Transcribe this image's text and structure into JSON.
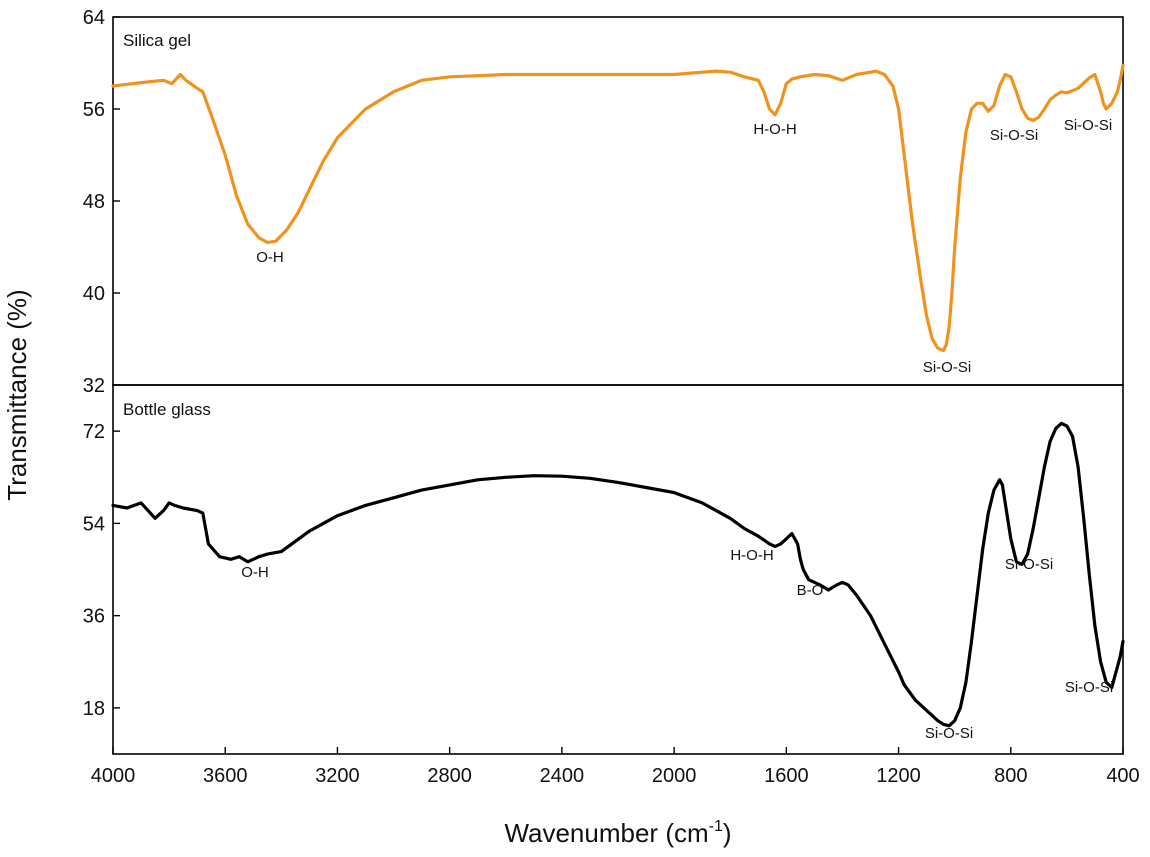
{
  "chart_data": [
    {
      "type": "line",
      "panel": "top",
      "title": "Silica gel",
      "color": "#f0921e",
      "xlim": [
        4000,
        400
      ],
      "ylim": [
        32,
        64
      ],
      "yticks": [
        32,
        40,
        48,
        56,
        64
      ],
      "xticks": [
        4000,
        3600,
        3200,
        2800,
        2400,
        2000,
        1600,
        1200,
        800,
        400
      ],
      "series": [
        {
          "name": "Silica gel",
          "x": [
            4000,
            3900,
            3820,
            3790,
            3760,
            3740,
            3700,
            3680,
            3650,
            3600,
            3560,
            3520,
            3480,
            3450,
            3420,
            3380,
            3340,
            3300,
            3250,
            3200,
            3100,
            3000,
            2950,
            2900,
            2800,
            2700,
            2600,
            2500,
            2400,
            2300,
            2200,
            2100,
            2000,
            1900,
            1850,
            1800,
            1750,
            1700,
            1680,
            1660,
            1640,
            1620,
            1600,
            1580,
            1550,
            1500,
            1450,
            1400,
            1350,
            1300,
            1280,
            1250,
            1220,
            1200,
            1180,
            1150,
            1120,
            1100,
            1080,
            1060,
            1040,
            1030,
            1020,
            1010,
            1000,
            980,
            960,
            940,
            920,
            900,
            880,
            860,
            840,
            820,
            800,
            780,
            760,
            740,
            720,
            700,
            680,
            660,
            640,
            620,
            600,
            560,
            520,
            500,
            480,
            470,
            460,
            440,
            420,
            410,
            400
          ],
          "y": [
            58.0,
            58.3,
            58.5,
            58.2,
            59.0,
            58.5,
            57.8,
            57.5,
            55.5,
            52.0,
            48.5,
            46.0,
            44.8,
            44.4,
            44.5,
            45.5,
            47.0,
            49.0,
            51.5,
            53.5,
            56.0,
            57.5,
            58.0,
            58.5,
            58.8,
            58.9,
            59.0,
            59.0,
            59.0,
            59.0,
            59.0,
            59.0,
            59.0,
            59.2,
            59.3,
            59.2,
            58.8,
            58.5,
            57.5,
            56.0,
            55.5,
            56.5,
            58.2,
            58.6,
            58.8,
            59.0,
            58.9,
            58.5,
            59.0,
            59.2,
            59.3,
            59.0,
            58.0,
            56.0,
            52.0,
            46.0,
            41.0,
            38.0,
            36.0,
            35.2,
            35.0,
            35.5,
            37.0,
            40.0,
            44.0,
            50.0,
            54.0,
            56.0,
            56.5,
            56.5,
            55.8,
            56.3,
            58.0,
            59.0,
            58.8,
            57.5,
            56.0,
            55.2,
            55.0,
            55.3,
            56.0,
            56.8,
            57.2,
            57.5,
            57.4,
            57.8,
            58.7,
            59.0,
            57.5,
            56.5,
            56.0,
            56.5,
            57.5,
            58.5,
            59.8
          ]
        }
      ],
      "annotations": [
        "O-H",
        "H-O-H",
        "Si-O-Si",
        "Si-O-Si",
        "Si-O-Si"
      ]
    },
    {
      "type": "line",
      "panel": "bottom",
      "title": "Bottle glass",
      "color": "#000000",
      "xlim": [
        4000,
        400
      ],
      "ylim": [
        9,
        81
      ],
      "yticks": [
        18,
        36,
        54,
        72
      ],
      "xticks": [
        4000,
        3600,
        3200,
        2800,
        2400,
        2000,
        1600,
        1200,
        800,
        400
      ],
      "series": [
        {
          "name": "Bottle glass",
          "x": [
            4000,
            3950,
            3900,
            3850,
            3820,
            3800,
            3780,
            3750,
            3700,
            3680,
            3660,
            3620,
            3580,
            3550,
            3520,
            3500,
            3480,
            3450,
            3400,
            3350,
            3300,
            3200,
            3100,
            3000,
            2900,
            2800,
            2700,
            2600,
            2500,
            2400,
            2300,
            2200,
            2100,
            2000,
            1900,
            1800,
            1750,
            1700,
            1660,
            1640,
            1620,
            1600,
            1580,
            1560,
            1550,
            1540,
            1520,
            1500,
            1480,
            1450,
            1420,
            1400,
            1380,
            1350,
            1300,
            1250,
            1200,
            1180,
            1160,
            1140,
            1120,
            1100,
            1080,
            1060,
            1040,
            1020,
            1000,
            980,
            960,
            940,
            920,
            900,
            880,
            860,
            840,
            830,
            820,
            800,
            780,
            760,
            740,
            720,
            700,
            680,
            660,
            640,
            620,
            600,
            580,
            560,
            540,
            520,
            500,
            480,
            460,
            440,
            430,
            420,
            410,
            400
          ],
          "y": [
            57.5,
            57.0,
            58.0,
            55.0,
            56.5,
            58.0,
            57.5,
            57.0,
            56.5,
            56.0,
            50.0,
            47.5,
            47.0,
            47.5,
            46.5,
            47.0,
            47.5,
            48.0,
            48.5,
            50.5,
            52.5,
            55.5,
            57.5,
            59.0,
            60.5,
            61.5,
            62.5,
            63.0,
            63.3,
            63.2,
            62.8,
            62.0,
            61.0,
            60.0,
            58.0,
            55.0,
            53.0,
            51.5,
            50.0,
            49.5,
            50.0,
            51.0,
            52.0,
            50.0,
            47.0,
            45.0,
            43.0,
            42.5,
            42.0,
            41.0,
            42.0,
            42.5,
            42.0,
            40.0,
            36.0,
            30.5,
            25.0,
            22.5,
            21.0,
            19.5,
            18.5,
            17.5,
            16.5,
            15.5,
            14.8,
            14.5,
            15.5,
            18.0,
            23.0,
            31.0,
            40.0,
            49.0,
            56.0,
            60.5,
            62.5,
            61.5,
            58.0,
            51.0,
            46.5,
            46.0,
            48.0,
            53.0,
            59.0,
            65.0,
            70.0,
            72.5,
            73.5,
            73.0,
            71.0,
            65.0,
            55.0,
            44.0,
            34.0,
            27.0,
            23.0,
            22.0,
            24.0,
            26.0,
            28.0,
            31.0
          ]
        }
      ],
      "annotations": [
        "O-H",
        "H-O-H",
        "B-O",
        "Si-O-Si",
        "Si-O-Si",
        "Si-O-Si"
      ]
    }
  ],
  "axes": {
    "ylabel": "Transmittance (%)",
    "xlabel_main": "Wavenumber (cm",
    "xlabel_sup": "-1",
    "xlabel_end": ")"
  }
}
